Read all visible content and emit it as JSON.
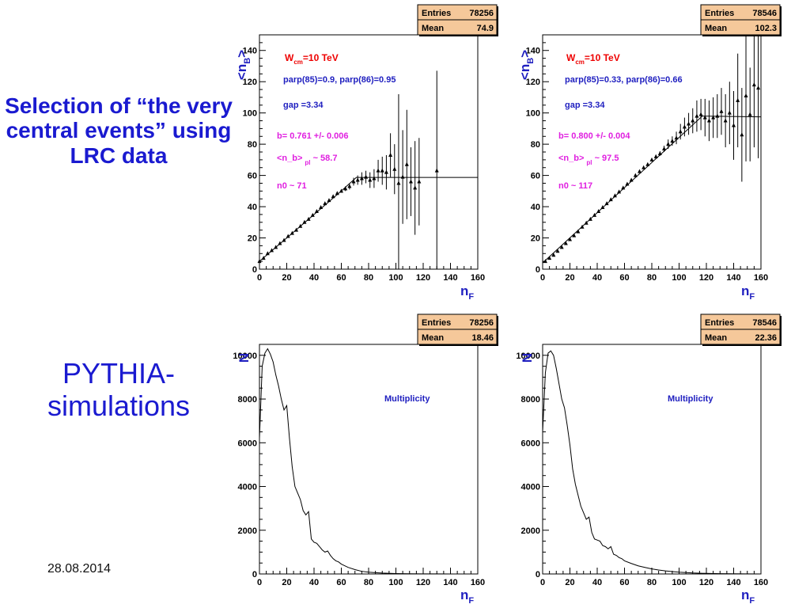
{
  "sidebar": {
    "title": "Selection of “the very central events” using LRC data",
    "subtitle": "PYTHIA-simulations",
    "date": "28.08.2014"
  },
  "colors": {
    "stats_box": "#f5c89a",
    "red": "#ee0000",
    "blue": "#2020c0",
    "magenta": "#e020e0",
    "title_blue": "#1a1ad0"
  },
  "chart_data": [
    {
      "type": "scatter",
      "ylabel": "<nB>",
      "xlabel": "nF",
      "xlim": [
        0,
        160
      ],
      "ylim": [
        0,
        150
      ],
      "xticks": [
        0,
        20,
        40,
        60,
        80,
        100,
        120,
        140,
        160
      ],
      "yticks": [
        0,
        20,
        40,
        60,
        80,
        100,
        120,
        140
      ],
      "stats": {
        "entries_label": "Entries",
        "entries": "78256",
        "mean_label": "Mean",
        "mean": "74.9"
      },
      "annotations": {
        "energy_main": "W",
        "energy_sub": "cm",
        "energy_rest": "=10 TeV",
        "parp": "parp(85)=0.9, parp(86)=0.95",
        "gap": "gap =3.34",
        "slope": "b= 0.761 +/- 0.006",
        "nb_main": "<n_b>",
        "nb_sub": "pl",
        "nb_rest": " ~ 58.7",
        "n0": "n0 ~ 71"
      },
      "fit": [
        [
          0,
          5
        ],
        [
          58,
          48.5
        ],
        [
          71,
          58.7
        ],
        [
          160,
          58.7
        ]
      ],
      "points": [
        {
          "x": 0,
          "y": 5,
          "e": 0.5
        },
        {
          "x": 3,
          "y": 7,
          "e": 0.5
        },
        {
          "x": 6,
          "y": 10,
          "e": 0.5
        },
        {
          "x": 9,
          "y": 12,
          "e": 0.5
        },
        {
          "x": 12,
          "y": 14,
          "e": 0.5
        },
        {
          "x": 15,
          "y": 16.5,
          "e": 0.5
        },
        {
          "x": 18,
          "y": 18.5,
          "e": 0.5
        },
        {
          "x": 21,
          "y": 21,
          "e": 0.5
        },
        {
          "x": 24,
          "y": 23,
          "e": 0.5
        },
        {
          "x": 27,
          "y": 25,
          "e": 0.5
        },
        {
          "x": 30,
          "y": 27.5,
          "e": 0.5
        },
        {
          "x": 33,
          "y": 30,
          "e": 0.5
        },
        {
          "x": 36,
          "y": 32,
          "e": 0.5
        },
        {
          "x": 39,
          "y": 34.5,
          "e": 0.5
        },
        {
          "x": 42,
          "y": 37,
          "e": 0.5
        },
        {
          "x": 45,
          "y": 39.5,
          "e": 0.5
        },
        {
          "x": 48,
          "y": 42,
          "e": 0.5
        },
        {
          "x": 51,
          "y": 44,
          "e": 0.6
        },
        {
          "x": 54,
          "y": 46.5,
          "e": 0.8
        },
        {
          "x": 57,
          "y": 48.5,
          "e": 1
        },
        {
          "x": 60,
          "y": 50,
          "e": 1
        },
        {
          "x": 63,
          "y": 51.5,
          "e": 1.5
        },
        {
          "x": 66,
          "y": 53,
          "e": 2
        },
        {
          "x": 69,
          "y": 56,
          "e": 2.5
        },
        {
          "x": 72,
          "y": 57,
          "e": 3
        },
        {
          "x": 75,
          "y": 58,
          "e": 4
        },
        {
          "x": 78,
          "y": 59,
          "e": 4
        },
        {
          "x": 81,
          "y": 57,
          "e": 5
        },
        {
          "x": 84,
          "y": 58,
          "e": 6
        },
        {
          "x": 87,
          "y": 63,
          "e": 7
        },
        {
          "x": 90,
          "y": 63,
          "e": 9
        },
        {
          "x": 93,
          "y": 62,
          "e": 11
        },
        {
          "x": 96,
          "y": 73,
          "e": 14
        },
        {
          "x": 99,
          "y": 64,
          "e": 16
        },
        {
          "x": 102,
          "y": 55,
          "e": 57
        },
        {
          "x": 105,
          "y": 59,
          "e": 30
        },
        {
          "x": 108,
          "y": 67,
          "e": 35
        },
        {
          "x": 111,
          "y": 56,
          "e": 22
        },
        {
          "x": 114,
          "y": 52,
          "e": 30
        },
        {
          "x": 117,
          "y": 56,
          "e": 28
        },
        {
          "x": 130,
          "y": 63,
          "e": 64
        }
      ]
    },
    {
      "type": "scatter",
      "ylabel": "<nB>",
      "xlabel": "nF",
      "xlim": [
        0,
        160
      ],
      "ylim": [
        0,
        150
      ],
      "xticks": [
        0,
        20,
        40,
        60,
        80,
        100,
        120,
        140,
        160
      ],
      "yticks": [
        0,
        20,
        40,
        60,
        80,
        100,
        120,
        140
      ],
      "stats": {
        "entries_label": "Entries",
        "entries": "78546",
        "mean_label": "Mean",
        "mean": "102.3"
      },
      "annotations": {
        "energy_main": "W",
        "energy_sub": "cm",
        "energy_rest": "=10 TeV",
        "parp": "parp(85)=0.33, parp(86)=0.66",
        "gap": "gap =3.34",
        "slope": "b= 0.800 +/- 0.004",
        "nb_main": "<n_b>",
        "nb_sub": "pl",
        "nb_rest": " ~ 97.5",
        "n0": "n0 ~ 117"
      },
      "fit": [
        [
          0,
          4
        ],
        [
          117,
          98
        ],
        [
          160,
          97.5
        ]
      ],
      "points": [
        {
          "x": 2,
          "y": 5,
          "e": 0.5
        },
        {
          "x": 5,
          "y": 7,
          "e": 0.5
        },
        {
          "x": 8,
          "y": 9,
          "e": 0.5
        },
        {
          "x": 11,
          "y": 11.5,
          "e": 0.5
        },
        {
          "x": 14,
          "y": 14,
          "e": 0.5
        },
        {
          "x": 17,
          "y": 16.5,
          "e": 0.5
        },
        {
          "x": 20,
          "y": 19,
          "e": 0.5
        },
        {
          "x": 23,
          "y": 21.5,
          "e": 0.5
        },
        {
          "x": 26,
          "y": 24,
          "e": 0.5
        },
        {
          "x": 29,
          "y": 27,
          "e": 0.5
        },
        {
          "x": 32,
          "y": 29.5,
          "e": 0.5
        },
        {
          "x": 35,
          "y": 32,
          "e": 0.5
        },
        {
          "x": 38,
          "y": 34.5,
          "e": 0.5
        },
        {
          "x": 41,
          "y": 37,
          "e": 0.5
        },
        {
          "x": 44,
          "y": 39.5,
          "e": 0.5
        },
        {
          "x": 47,
          "y": 42,
          "e": 0.5
        },
        {
          "x": 50,
          "y": 44.5,
          "e": 0.5
        },
        {
          "x": 53,
          "y": 47,
          "e": 0.5
        },
        {
          "x": 56,
          "y": 49.5,
          "e": 0.5
        },
        {
          "x": 59,
          "y": 52,
          "e": 0.5
        },
        {
          "x": 62,
          "y": 54.5,
          "e": 0.5
        },
        {
          "x": 65,
          "y": 57,
          "e": 0.5
        },
        {
          "x": 68,
          "y": 60,
          "e": 0.6
        },
        {
          "x": 71,
          "y": 62.5,
          "e": 0.6
        },
        {
          "x": 74,
          "y": 65,
          "e": 0.7
        },
        {
          "x": 77,
          "y": 67,
          "e": 0.8
        },
        {
          "x": 80,
          "y": 70,
          "e": 1
        },
        {
          "x": 83,
          "y": 72,
          "e": 1.2
        },
        {
          "x": 86,
          "y": 74,
          "e": 1.5
        },
        {
          "x": 89,
          "y": 77,
          "e": 2
        },
        {
          "x": 92,
          "y": 80,
          "e": 3
        },
        {
          "x": 95,
          "y": 82,
          "e": 3
        },
        {
          "x": 98,
          "y": 84,
          "e": 4
        },
        {
          "x": 101,
          "y": 88,
          "e": 5
        },
        {
          "x": 104,
          "y": 91,
          "e": 6
        },
        {
          "x": 107,
          "y": 93,
          "e": 7
        },
        {
          "x": 110,
          "y": 95,
          "e": 8
        },
        {
          "x": 113,
          "y": 98,
          "e": 10
        },
        {
          "x": 116,
          "y": 99,
          "e": 10
        },
        {
          "x": 119,
          "y": 97,
          "e": 12
        },
        {
          "x": 122,
          "y": 95,
          "e": 13
        },
        {
          "x": 125,
          "y": 97,
          "e": 13
        },
        {
          "x": 128,
          "y": 98,
          "e": 14
        },
        {
          "x": 131,
          "y": 101,
          "e": 15
        },
        {
          "x": 134,
          "y": 95,
          "e": 17
        },
        {
          "x": 137,
          "y": 100,
          "e": 20
        },
        {
          "x": 140,
          "y": 92,
          "e": 22
        },
        {
          "x": 143,
          "y": 108,
          "e": 30
        },
        {
          "x": 146,
          "y": 86,
          "e": 30
        },
        {
          "x": 149,
          "y": 111,
          "e": 42
        },
        {
          "x": 152,
          "y": 99,
          "e": 30
        },
        {
          "x": 155,
          "y": 118,
          "e": 40
        },
        {
          "x": 158,
          "y": 116,
          "e": 45
        }
      ]
    },
    {
      "type": "line",
      "ylabel": "N",
      "xlabel": "nF",
      "xlim": [
        0,
        160
      ],
      "ylim": [
        0,
        10500
      ],
      "xticks": [
        0,
        20,
        40,
        60,
        80,
        100,
        120,
        140,
        160
      ],
      "yticks": [
        0,
        2000,
        4000,
        6000,
        8000,
        10000
      ],
      "stats": {
        "entries_label": "Entries",
        "entries": "78256",
        "mean_label": "Mean",
        "mean": "18.46"
      },
      "label": "Multiplicity",
      "x": [
        0,
        2,
        4,
        6,
        8,
        10,
        12,
        14,
        16,
        18,
        20,
        22,
        24,
        26,
        28,
        30,
        32,
        34,
        36,
        38,
        40,
        42,
        44,
        46,
        48,
        50,
        52,
        54,
        56,
        58,
        60,
        65,
        70,
        75,
        80,
        85,
        90,
        100,
        110,
        120,
        130,
        140,
        150,
        160
      ],
      "y": [
        6200,
        9500,
        10100,
        10300,
        10050,
        9700,
        9100,
        8600,
        8000,
        7500,
        7700,
        6200,
        4900,
        4000,
        3700,
        3400,
        2900,
        2700,
        2850,
        1600,
        1450,
        1400,
        1250,
        1100,
        1000,
        1050,
        850,
        700,
        600,
        550,
        450,
        300,
        200,
        120,
        80,
        60,
        40,
        20,
        10,
        5,
        3,
        2,
        1,
        0
      ]
    },
    {
      "type": "line",
      "ylabel": "N",
      "xlabel": "nF",
      "xlim": [
        0,
        160
      ],
      "ylim": [
        0,
        10500
      ],
      "xticks": [
        0,
        20,
        40,
        60,
        80,
        100,
        120,
        140,
        160
      ],
      "yticks": [
        0,
        2000,
        4000,
        6000,
        8000,
        10000
      ],
      "stats": {
        "entries_label": "Entries",
        "entries": "78546",
        "mean_label": "Mean",
        "mean": "22.36"
      },
      "label": "Multiplicity",
      "x": [
        0,
        2,
        4,
        6,
        8,
        10,
        12,
        14,
        16,
        18,
        20,
        22,
        24,
        26,
        28,
        30,
        32,
        34,
        36,
        38,
        40,
        42,
        44,
        46,
        48,
        50,
        52,
        54,
        56,
        58,
        60,
        65,
        70,
        75,
        80,
        85,
        90,
        95,
        100,
        110,
        120,
        130,
        140,
        150,
        160
      ],
      "y": [
        6500,
        9200,
        10100,
        10200,
        10000,
        9400,
        8700,
        8000,
        7600,
        6800,
        5900,
        4800,
        4100,
        3600,
        3100,
        2800,
        2500,
        2600,
        1900,
        1600,
        1550,
        1500,
        1300,
        1250,
        1150,
        1250,
        900,
        850,
        750,
        700,
        600,
        480,
        370,
        300,
        230,
        180,
        140,
        110,
        80,
        45,
        25,
        15,
        10,
        5,
        0
      ]
    }
  ]
}
